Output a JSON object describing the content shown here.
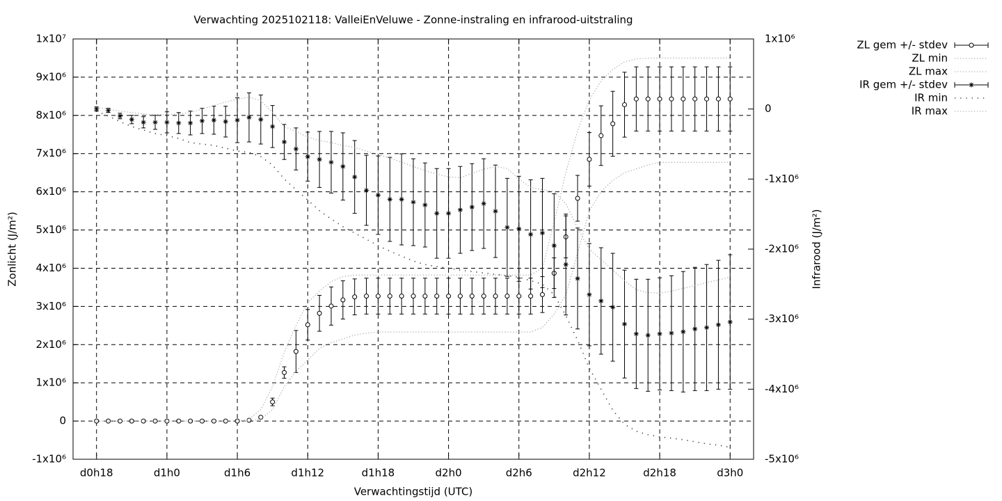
{
  "chart_data": {
    "type": "errorbar-line",
    "title": "Verwachting 2025102118: ValleiEnVeluwe - Zonne-instraling en infrarood-uitstraling",
    "xlabel": "Verwachtingstijd (UTC)",
    "ylabel": "Zonlicht (J/m²)",
    "y2label": "Infrarood (J/m²)",
    "grid": true,
    "legend": "outside-top-right",
    "xlim": [
      16,
      74
    ],
    "xticks": [
      {
        "value": 18,
        "label": "d0h18"
      },
      {
        "value": 24,
        "label": "d1h0"
      },
      {
        "value": 30,
        "label": "d1h6"
      },
      {
        "value": 36,
        "label": "d1h12"
      },
      {
        "value": 42,
        "label": "d1h18"
      },
      {
        "value": 48,
        "label": "d2h0"
      },
      {
        "value": 54,
        "label": "d2h6"
      },
      {
        "value": 60,
        "label": "d2h12"
      },
      {
        "value": 66,
        "label": "d2h18"
      },
      {
        "value": 72,
        "label": "d3h0"
      }
    ],
    "ylim": [
      -1000000,
      10000000
    ],
    "yticks": [
      {
        "value": -1000000,
        "label": "-1x10⁶"
      },
      0,
      {
        "value": 1000000,
        "label": "1x10⁶"
      },
      {
        "value": 2000000,
        "label": "2x10⁶"
      },
      {
        "value": 3000000,
        "label": "3x10⁶"
      },
      {
        "value": 4000000,
        "label": "4x10⁶"
      },
      {
        "value": 5000000,
        "label": "5x10⁶"
      },
      {
        "value": 6000000,
        "label": "6x10⁶"
      },
      {
        "value": 7000000,
        "label": "7x10⁶"
      },
      {
        "value": 8000000,
        "label": "8x10⁶"
      },
      {
        "value": 9000000,
        "label": "9x10⁶"
      },
      {
        "value": 10000000,
        "label": "1x10⁷"
      }
    ],
    "y2lim": [
      -5000000,
      1000000
    ],
    "y2ticks": [
      {
        "value": -5000000,
        "label": "-5x10⁶"
      },
      {
        "value": -4000000,
        "label": "-4x10⁶"
      },
      {
        "value": -3000000,
        "label": "-3x10⁶"
      },
      {
        "value": -2000000,
        "label": "-2x10⁶"
      },
      {
        "value": -1000000,
        "label": "-1x10⁶"
      },
      0,
      {
        "value": 1000000,
        "label": "1x10⁶"
      }
    ],
    "x": [
      18,
      19,
      20,
      21,
      22,
      23,
      24,
      25,
      26,
      27,
      28,
      29,
      30,
      31,
      32,
      33,
      34,
      35,
      36,
      37,
      38,
      39,
      40,
      41,
      42,
      43,
      44,
      45,
      46,
      47,
      48,
      49,
      50,
      51,
      52,
      53,
      54,
      55,
      56,
      57,
      58,
      59,
      60,
      61,
      62,
      63,
      64,
      65,
      66,
      67,
      68,
      69,
      70,
      71,
      72
    ],
    "series": [
      {
        "name": "ZL gem +/- stdev",
        "color": "#000000",
        "style": "errorbars-circle",
        "values": [
          0,
          0,
          0,
          0,
          0,
          0,
          0,
          0,
          0,
          0,
          0,
          0,
          0,
          20000,
          100000,
          500000,
          1270000,
          1820000,
          2520000,
          2820000,
          3010000,
          3170000,
          3250000,
          3270000,
          3270000,
          3270000,
          3270000,
          3270000,
          3270000,
          3270000,
          3270000,
          3270000,
          3270000,
          3270000,
          3270000,
          3270000,
          3270000,
          3270000,
          3310000,
          3870000,
          4820000,
          5830000,
          6850000,
          7470000,
          7780000,
          8280000,
          8430000,
          8430000,
          8430000,
          8430000,
          8430000,
          8430000,
          8430000,
          8430000,
          8430000
        ],
        "errors": [
          0,
          0,
          0,
          0,
          0,
          0,
          0,
          0,
          0,
          0,
          0,
          0,
          0,
          0,
          0,
          100000,
          150000,
          550000,
          400000,
          470000,
          500000,
          500000,
          470000,
          470000,
          470000,
          470000,
          470000,
          470000,
          470000,
          470000,
          470000,
          470000,
          470000,
          470000,
          470000,
          470000,
          470000,
          470000,
          470000,
          400000,
          550000,
          600000,
          700000,
          780000,
          850000,
          850000,
          840000,
          840000,
          840000,
          840000,
          840000,
          840000,
          840000,
          840000,
          840000
        ]
      },
      {
        "name": "ZL min",
        "color": "#999999",
        "style": "dotted",
        "values": [
          0,
          0,
          0,
          0,
          0,
          0,
          0,
          0,
          0,
          0,
          0,
          0,
          0,
          0,
          50000,
          300000,
          900000,
          1300000,
          1600000,
          1900000,
          2050000,
          2150000,
          2250000,
          2300000,
          2330000,
          2330000,
          2330000,
          2330000,
          2330000,
          2330000,
          2330000,
          2330000,
          2330000,
          2330000,
          2330000,
          2330000,
          2330000,
          2330000,
          2450000,
          2800000,
          3300000,
          4400000,
          5500000,
          6000000,
          6300000,
          6500000,
          6600000,
          6700000,
          6770000,
          6770000,
          6770000,
          6770000,
          6770000,
          6770000,
          6770000
        ]
      },
      {
        "name": "ZL max",
        "color": "#999999",
        "style": "dotted",
        "values": [
          0,
          0,
          0,
          0,
          0,
          0,
          0,
          0,
          0,
          0,
          0,
          0,
          0,
          50000,
          300000,
          900000,
          1800000,
          2500000,
          3100000,
          3400000,
          3650000,
          3780000,
          3820000,
          3820000,
          3820000,
          3820000,
          3820000,
          3820000,
          3820000,
          3820000,
          3820000,
          3820000,
          3820000,
          3820000,
          3820000,
          3820000,
          3820000,
          3820000,
          4000000,
          5200000,
          6500000,
          7600000,
          8400000,
          8900000,
          9200000,
          9400000,
          9480000,
          9500000,
          9500000,
          9500000,
          9500000,
          9500000,
          9500000,
          9500000,
          9500000
        ]
      },
      {
        "name": "IR gem +/- stdev",
        "color": "#000000",
        "style": "errorbars-star",
        "axis": "y2",
        "values": [
          0,
          -20000,
          -100000,
          -150000,
          -190000,
          -190000,
          -190000,
          -200000,
          -200000,
          -170000,
          -160000,
          -180000,
          -160000,
          -120000,
          -150000,
          -250000,
          -470000,
          -570000,
          -680000,
          -720000,
          -760000,
          -820000,
          -970000,
          -1160000,
          -1230000,
          -1290000,
          -1290000,
          -1330000,
          -1370000,
          -1490000,
          -1490000,
          -1440000,
          -1400000,
          -1350000,
          -1460000,
          -1690000,
          -1710000,
          -1790000,
          -1770000,
          -1950000,
          -2220000,
          -2420000,
          -2650000,
          -2740000,
          -2830000,
          -3070000,
          -3210000,
          -3230000,
          -3210000,
          -3200000,
          -3180000,
          -3140000,
          -3120000,
          -3080000,
          -3040000
        ],
        "errors": [
          30000,
          30000,
          40000,
          60000,
          80000,
          100000,
          150000,
          150000,
          170000,
          180000,
          200000,
          220000,
          320000,
          350000,
          350000,
          300000,
          250000,
          300000,
          350000,
          400000,
          440000,
          480000,
          520000,
          500000,
          560000,
          600000,
          650000,
          620000,
          600000,
          640000,
          640000,
          620000,
          620000,
          640000,
          660000,
          700000,
          750000,
          780000,
          780000,
          740000,
          720000,
          720000,
          730000,
          760000,
          770000,
          770000,
          780000,
          800000,
          800000,
          820000,
          860000,
          880000,
          900000,
          920000,
          960000
        ]
      },
      {
        "name": "IR min",
        "color": "#333333",
        "style": "sparse-dots",
        "axis": "y2",
        "values": [
          -30000,
          -100000,
          -180000,
          -250000,
          -300000,
          -350000,
          -380000,
          -420000,
          -480000,
          -500000,
          -520000,
          -560000,
          -600000,
          -620000,
          -680000,
          -800000,
          -1000000,
          -1150000,
          -1300000,
          -1450000,
          -1570000,
          -1680000,
          -1770000,
          -1860000,
          -1950000,
          -2030000,
          -2100000,
          -2170000,
          -2220000,
          -2250000,
          -2270000,
          -2300000,
          -2320000,
          -2340000,
          -2360000,
          -2380000,
          -2400000,
          -2450000,
          -2500000,
          -2650000,
          -2950000,
          -3300000,
          -3700000,
          -4000000,
          -4300000,
          -4500000,
          -4600000,
          -4650000,
          -4680000,
          -4700000,
          -4720000,
          -4750000,
          -4780000,
          -4800000,
          -4830000
        ]
      },
      {
        "name": "IR max",
        "color": "#999999",
        "style": "dotted",
        "axis": "y2",
        "values": [
          20000,
          0,
          -30000,
          -50000,
          -70000,
          -80000,
          -80000,
          -70000,
          -50000,
          0,
          50000,
          100000,
          140000,
          170000,
          120000,
          -50000,
          -250000,
          -320000,
          -400000,
          -450000,
          -480000,
          -520000,
          -550000,
          -600000,
          -650000,
          -700000,
          -760000,
          -820000,
          -880000,
          -930000,
          -970000,
          -980000,
          -920000,
          -860000,
          -820000,
          -850000,
          -1000000,
          -1120000,
          -1150000,
          -1180000,
          -1350000,
          -1700000,
          -2000000,
          -2150000,
          -2300000,
          -2450000,
          -2580000,
          -2620000,
          -2630000,
          -2600000,
          -2560000,
          -2520000,
          -2480000,
          -2440000,
          -2400000
        ]
      }
    ]
  }
}
